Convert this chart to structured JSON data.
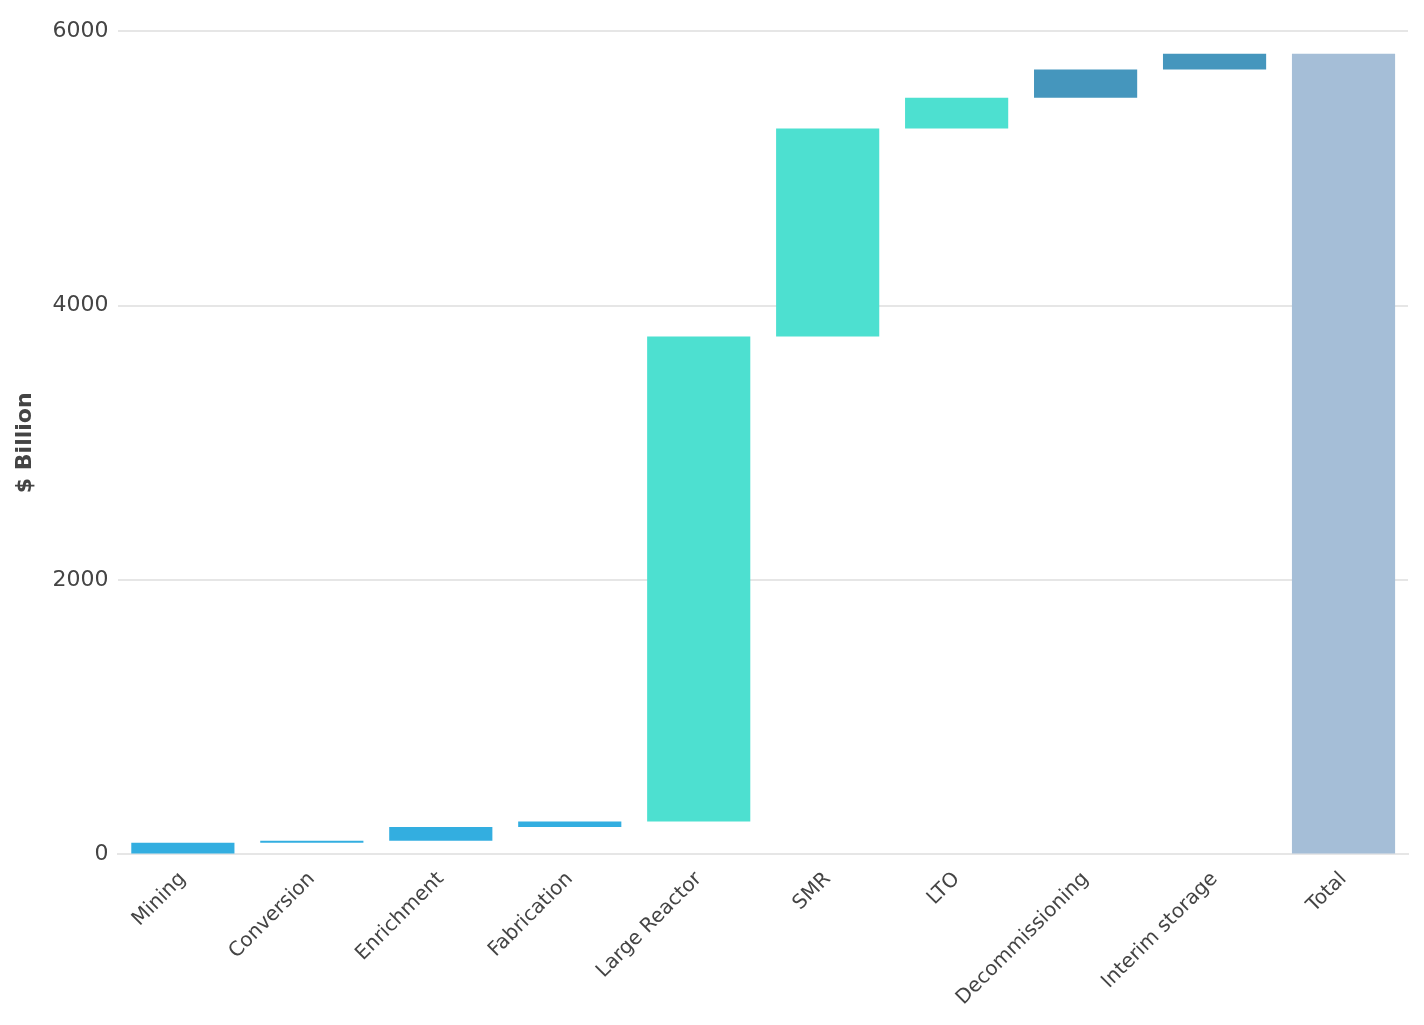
{
  "chart_data": {
    "type": "bar",
    "ylabel": "$ Billion",
    "categories": [
      "Mining",
      "Conversion",
      "Enrichment",
      "Fabrication",
      "Large Reactor",
      "SMR",
      "LTO",
      "Decommissioning",
      "Interim storage",
      "Total"
    ],
    "values": [
      85,
      15,
      100,
      40,
      3535,
      1515,
      225,
      205,
      115,
      5835
    ],
    "base": [
      0,
      85,
      100,
      200,
      240,
      3775,
      5290,
      5515,
      5720,
      0
    ],
    "colors": [
      "#33aee0",
      "#33aee0",
      "#33aee0",
      "#33aee0",
      "#4de0d0",
      "#4de0d0",
      "#4de0d0",
      "#4596bd",
      "#4596bd",
      "#a5bed7"
    ],
    "ylim": [
      0,
      6000
    ],
    "yticks": [
      0,
      2000,
      4000,
      6000
    ],
    "grid": "y"
  }
}
